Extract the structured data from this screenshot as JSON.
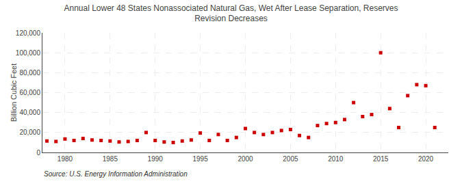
{
  "chart_data": {
    "type": "scatter",
    "title": "Annual Lower 48 States Nonassociated Natural Gas, Wet After Lease Separation, Reserves\nRevision Decreases",
    "ylabel": "Billion Cubic Feet",
    "annotations": [
      "Source: U.S. Energy Information Administration"
    ],
    "x": [
      1978,
      1979,
      1980,
      1981,
      1982,
      1983,
      1984,
      1985,
      1986,
      1987,
      1988,
      1989,
      1990,
      1991,
      1992,
      1993,
      1994,
      1995,
      1996,
      1997,
      1998,
      1999,
      2000,
      2001,
      2002,
      2003,
      2004,
      2005,
      2006,
      2007,
      2008,
      2009,
      2010,
      2011,
      2012,
      2013,
      2014,
      2015,
      2016,
      2017,
      2018,
      2019,
      2020,
      2021
    ],
    "values": [
      11500,
      11000,
      13500,
      12000,
      14000,
      12500,
      12000,
      11500,
      10500,
      11000,
      12000,
      20000,
      12000,
      10500,
      10000,
      11500,
      12500,
      19500,
      12000,
      18000,
      12000,
      15000,
      24000,
      20000,
      18000,
      20000,
      22000,
      23000,
      17000,
      15000,
      27000,
      29000,
      30000,
      33000,
      50000,
      36000,
      38000,
      100000,
      44000,
      25000,
      57000,
      68000,
      67000,
      25000
    ],
    "color": "#cc0000",
    "marker": "square",
    "xlim": [
      1977.5,
      2022.5
    ],
    "xticks": [
      1980,
      1985,
      1990,
      1995,
      2000,
      2005,
      2010,
      2015,
      2020
    ],
    "ylim": [
      0,
      120000
    ],
    "yticks": [
      0,
      {
        "value": 20000,
        "label": "20,000"
      },
      {
        "value": 40000,
        "label": "40,000"
      },
      {
        "value": 60000,
        "label": "60,000"
      },
      {
        "value": 80000,
        "label": "80,000"
      },
      {
        "value": 100000,
        "label": "100,000"
      },
      {
        "value": 120000,
        "label": "120,000"
      }
    ],
    "grid": true
  }
}
